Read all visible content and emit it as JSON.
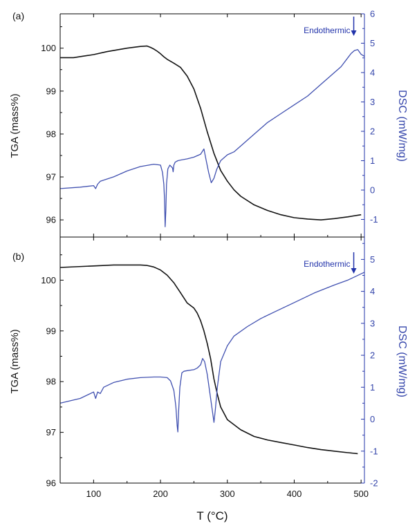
{
  "figure": {
    "xlabel": "T (°C)",
    "x_ticks": [
      100,
      200,
      300,
      400,
      500
    ]
  },
  "chart_data": [
    {
      "type": "line",
      "panel_label": "(a)",
      "annotation": "Endothermic",
      "annotation_x": 489,
      "xlim": [
        50,
        505
      ],
      "y_left": {
        "label": "TGA (mass%)",
        "ylim": [
          95.6,
          100.8
        ],
        "ticks": [
          96,
          97,
          98,
          99,
          100
        ]
      },
      "y_right": {
        "label": "DSC (mW/mg)",
        "ylim": [
          -1.6,
          6.0
        ],
        "ticks": [
          -1,
          0,
          1,
          2,
          3,
          4,
          5,
          6
        ]
      },
      "series": [
        {
          "axis": "left",
          "color": "#111111",
          "x": [
            50,
            70,
            100,
            120,
            150,
            170,
            180,
            185,
            190,
            195,
            200,
            205,
            210,
            220,
            230,
            240,
            250,
            260,
            270,
            280,
            290,
            300,
            310,
            320,
            340,
            360,
            380,
            400,
            420,
            440,
            460,
            480,
            500
          ],
          "y": [
            99.78,
            99.78,
            99.85,
            99.92,
            100.0,
            100.04,
            100.05,
            100.02,
            99.98,
            99.93,
            99.87,
            99.8,
            99.74,
            99.65,
            99.55,
            99.35,
            99.05,
            98.6,
            98.05,
            97.55,
            97.15,
            96.9,
            96.7,
            96.55,
            96.35,
            96.22,
            96.12,
            96.05,
            96.02,
            96.0,
            96.03,
            96.07,
            96.12
          ]
        },
        {
          "axis": "right",
          "color": "#4050b0",
          "x": [
            50,
            80,
            100,
            103,
            106,
            110,
            130,
            150,
            170,
            190,
            200,
            203,
            205,
            206,
            207,
            208,
            209,
            211,
            214,
            218,
            219,
            220,
            222,
            226,
            230,
            240,
            250,
            260,
            265,
            268,
            272,
            276,
            280,
            284,
            290,
            300,
            310,
            320,
            340,
            360,
            380,
            400,
            420,
            440,
            460,
            470,
            480,
            485,
            490,
            495,
            500,
            505
          ],
          "y": [
            0.05,
            0.1,
            0.15,
            0.05,
            0.2,
            0.3,
            0.45,
            0.65,
            0.8,
            0.88,
            0.85,
            0.6,
            0.2,
            -0.3,
            -1.25,
            -0.7,
            0.2,
            0.72,
            0.85,
            0.75,
            0.62,
            0.85,
            0.95,
            1.0,
            1.02,
            1.06,
            1.12,
            1.22,
            1.4,
            1.05,
            0.6,
            0.25,
            0.4,
            0.7,
            1.0,
            1.2,
            1.3,
            1.5,
            1.9,
            2.3,
            2.6,
            2.9,
            3.2,
            3.6,
            4.0,
            4.2,
            4.5,
            4.65,
            4.75,
            4.78,
            4.62,
            4.55
          ]
        }
      ]
    },
    {
      "type": "line",
      "panel_label": "(b)",
      "annotation": "Endothermic",
      "annotation_x": 489,
      "xlim": [
        50,
        505
      ],
      "y_left": {
        "label": "TGA (mass%)",
        "ylim": [
          96.0,
          100.85
        ],
        "ticks": [
          96,
          97,
          98,
          99,
          100
        ]
      },
      "y_right": {
        "label": "DSC (mW/mg)",
        "ylim": [
          -2.0,
          5.7
        ],
        "ticks": [
          -2,
          -1,
          0,
          1,
          2,
          3,
          4,
          5
        ]
      },
      "series": [
        {
          "axis": "left",
          "color": "#111111",
          "x": [
            50,
            100,
            130,
            150,
            170,
            180,
            190,
            200,
            210,
            220,
            230,
            240,
            250,
            255,
            260,
            265,
            270,
            275,
            280,
            285,
            290,
            300,
            320,
            340,
            360,
            380,
            400,
            420,
            440,
            460,
            480,
            495
          ],
          "y": [
            100.25,
            100.28,
            100.3,
            100.3,
            100.3,
            100.29,
            100.26,
            100.2,
            100.1,
            99.95,
            99.75,
            99.55,
            99.45,
            99.35,
            99.2,
            99.0,
            98.75,
            98.45,
            98.05,
            97.75,
            97.5,
            97.25,
            97.05,
            96.92,
            96.85,
            96.8,
            96.75,
            96.7,
            96.66,
            96.63,
            96.6,
            96.58
          ]
        },
        {
          "axis": "right",
          "color": "#4050b0",
          "x": [
            50,
            80,
            100,
            103,
            106,
            110,
            115,
            130,
            150,
            170,
            190,
            200,
            210,
            215,
            220,
            223,
            225,
            226,
            227,
            229,
            232,
            235,
            240,
            250,
            255,
            260,
            263,
            266,
            270,
            274,
            278,
            280,
            282,
            285,
            290,
            300,
            310,
            330,
            350,
            370,
            400,
            430,
            460,
            480,
            500,
            505
          ],
          "y": [
            0.5,
            0.65,
            0.85,
            0.65,
            0.85,
            0.8,
            1.0,
            1.15,
            1.25,
            1.3,
            1.32,
            1.32,
            1.3,
            1.2,
            0.9,
            0.4,
            -0.2,
            -0.4,
            0.2,
            1.0,
            1.45,
            1.5,
            1.52,
            1.55,
            1.6,
            1.7,
            1.9,
            1.8,
            1.4,
            0.8,
            0.2,
            -0.1,
            0.3,
            1.0,
            1.8,
            2.3,
            2.6,
            2.9,
            3.15,
            3.35,
            3.65,
            3.95,
            4.2,
            4.35,
            4.55,
            4.6
          ]
        }
      ]
    }
  ]
}
